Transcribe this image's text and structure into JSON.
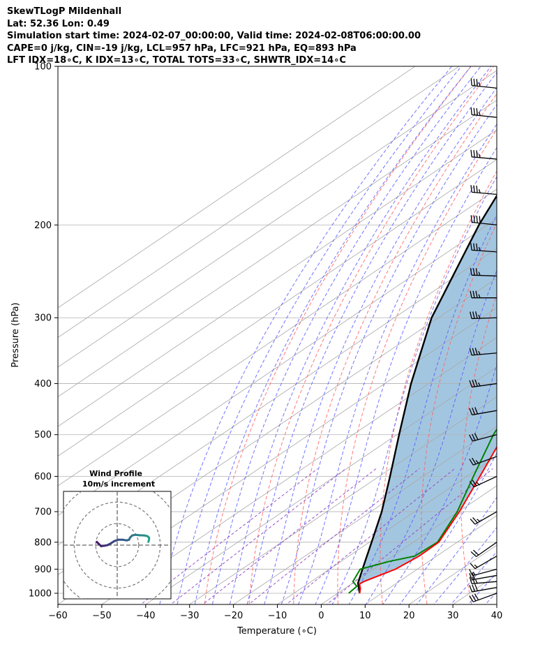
{
  "header": {
    "lines": [
      "SkewTLogP Mildenhall",
      "Lat: 52.36   Lon: 0.49",
      "Simulation start time: 2024-02-07_00:00:00, Valid time: 2024-02-08T06:00:00.00",
      "CAPE=0 j/kg, CIN=-19 j/kg, LCL=957 hPa, LFC=921 hPa, EQ=893 hPa",
      "LFT IDX=18∘C, K IDX=13∘C, TOTAL TOTS=33∘C, SHWTR_IDX=14∘C"
    ]
  },
  "chart_data": {
    "type": "skewt",
    "xlabel": "Temperature (∘C)",
    "ylabel": "Pressure (hPa)",
    "xlim": [
      -60,
      40
    ],
    "ylim": [
      1050,
      100
    ],
    "x_ticks": [
      -60,
      -50,
      -40,
      -30,
      -20,
      -10,
      0,
      10,
      20,
      30,
      40
    ],
    "x_tick_labels": [
      "−60",
      "−50",
      "−40",
      "−30",
      "−20",
      "−10",
      "0",
      "10",
      "20",
      "30",
      "40"
    ],
    "y_ticks": [
      1000,
      900,
      800,
      700,
      600,
      500,
      400,
      300,
      200,
      100
    ],
    "grid": true,
    "colors": {
      "temperature": "#ff0000",
      "dewpoint": "#008000",
      "parcel": "#000000",
      "fill": "#a3c6e0",
      "dry_adiabats": "#ff6060",
      "moist_adiabats": "#5a5aff",
      "mixing_ratio": "#9040c0",
      "isotherms": "#a8a8a8"
    },
    "temperature": [
      {
        "p": 1000,
        "t": 5.0
      },
      {
        "p": 980,
        "t": 3.6
      },
      {
        "p": 960,
        "t": 1.8
      },
      {
        "p": 950,
        "t": 2.0
      },
      {
        "p": 900,
        "t": 5.0
      },
      {
        "p": 850,
        "t": 6.0
      },
      {
        "p": 800,
        "t": 5.8
      },
      {
        "p": 700,
        "t": 0.2
      },
      {
        "p": 600,
        "t": -7.0
      },
      {
        "p": 500,
        "t": -15.6
      },
      {
        "p": 400,
        "t": -25.0
      },
      {
        "p": 300,
        "t": -38.5
      },
      {
        "p": 250,
        "t": -46.5
      },
      {
        "p": 200,
        "t": -56.5
      },
      {
        "p": 180,
        "t": -55.0
      },
      {
        "p": 150,
        "t": -48.0
      },
      {
        "p": 120,
        "t": -46.0
      },
      {
        "p": 100,
        "t": -49.0
      }
    ],
    "dewpoint": [
      {
        "p": 1000,
        "t": 2.5
      },
      {
        "p": 970,
        "t": 2.0
      },
      {
        "p": 950,
        "t": -0.5
      },
      {
        "p": 900,
        "t": -3.0
      },
      {
        "p": 870,
        "t": 1.0
      },
      {
        "p": 850,
        "t": 5.0
      },
      {
        "p": 800,
        "t": 5.5
      },
      {
        "p": 700,
        "t": -0.3
      },
      {
        "p": 600,
        "t": -8.5
      },
      {
        "p": 500,
        "t": -18.0
      },
      {
        "p": 400,
        "t": -28.0
      },
      {
        "p": 300,
        "t": -44.0
      },
      {
        "p": 250,
        "t": -53.0
      },
      {
        "p": 200,
        "t": -63.0
      },
      {
        "p": 180,
        "t": -62.5
      },
      {
        "p": 160,
        "t": -59.5
      },
      {
        "p": 150,
        "t": -62.0
      },
      {
        "p": 135,
        "t": -68.0
      },
      {
        "p": 120,
        "t": -66.0
      },
      {
        "p": 100,
        "t": -61.0
      }
    ],
    "parcel": [
      {
        "p": 1000,
        "t": 5.0
      },
      {
        "p": 957,
        "t": 1.2
      },
      {
        "p": 900,
        "t": -2.5
      },
      {
        "p": 800,
        "t": -9.5
      },
      {
        "p": 700,
        "t": -17.5
      },
      {
        "p": 600,
        "t": -27.5
      },
      {
        "p": 500,
        "t": -39.5
      },
      {
        "p": 400,
        "t": -54.0
      },
      {
        "p": 300,
        "t": -71.5
      },
      {
        "p": 200,
        "t": -92.0
      },
      {
        "p": 150,
        "t": -105.0
      },
      {
        "p": 100,
        "t": -123.0
      }
    ],
    "wind_barbs": [
      {
        "p": 1000,
        "speed_kt": 30,
        "dir_deg": 250
      },
      {
        "p": 975,
        "speed_kt": 30,
        "dir_deg": 260
      },
      {
        "p": 950,
        "speed_kt": 25,
        "dir_deg": 265
      },
      {
        "p": 925,
        "speed_kt": 20,
        "dir_deg": 260
      },
      {
        "p": 900,
        "speed_kt": 15,
        "dir_deg": 255
      },
      {
        "p": 850,
        "speed_kt": 15,
        "dir_deg": 240
      },
      {
        "p": 800,
        "speed_kt": 20,
        "dir_deg": 235
      },
      {
        "p": 700,
        "speed_kt": 25,
        "dir_deg": 240
      },
      {
        "p": 600,
        "speed_kt": 25,
        "dir_deg": 245
      },
      {
        "p": 550,
        "speed_kt": 25,
        "dir_deg": 250
      },
      {
        "p": 500,
        "speed_kt": 30,
        "dir_deg": 255
      },
      {
        "p": 450,
        "speed_kt": 30,
        "dir_deg": 260
      },
      {
        "p": 400,
        "speed_kt": 35,
        "dir_deg": 262
      },
      {
        "p": 350,
        "speed_kt": 35,
        "dir_deg": 265
      },
      {
        "p": 300,
        "speed_kt": 35,
        "dir_deg": 268
      },
      {
        "p": 275,
        "speed_kt": 35,
        "dir_deg": 270
      },
      {
        "p": 250,
        "speed_kt": 35,
        "dir_deg": 272
      },
      {
        "p": 225,
        "speed_kt": 35,
        "dir_deg": 274
      },
      {
        "p": 200,
        "speed_kt": 40,
        "dir_deg": 276
      },
      {
        "p": 175,
        "speed_kt": 35,
        "dir_deg": 275
      },
      {
        "p": 150,
        "speed_kt": 35,
        "dir_deg": 275
      },
      {
        "p": 125,
        "speed_kt": 35,
        "dir_deg": 276
      },
      {
        "p": 110,
        "speed_kt": 35,
        "dir_deg": 276
      }
    ],
    "hodograph": {
      "title": "Wind Profile",
      "subtitle": "10m/s increment",
      "ring_spacing_ms": 10,
      "range_ms": 25,
      "points": [
        {
          "u": -9.5,
          "v": 1.5
        },
        {
          "u": -8.5,
          "v": 0.5
        },
        {
          "u": -7.5,
          "v": -0.5
        },
        {
          "u": -6.0,
          "v": -0.3
        },
        {
          "u": -4.5,
          "v": 0.0
        },
        {
          "u": -3.0,
          "v": 0.8
        },
        {
          "u": -1.5,
          "v": 1.8
        },
        {
          "u": 0.5,
          "v": 2.5
        },
        {
          "u": 2.5,
          "v": 2.5
        },
        {
          "u": 4.5,
          "v": 2.2
        },
        {
          "u": 5.5,
          "v": 2.5
        },
        {
          "u": 6.0,
          "v": 3.5
        },
        {
          "u": 7.0,
          "v": 4.5
        },
        {
          "u": 8.5,
          "v": 4.8
        },
        {
          "u": 10.5,
          "v": 4.6
        },
        {
          "u": 12.5,
          "v": 4.5
        },
        {
          "u": 14.0,
          "v": 4.2
        },
        {
          "u": 14.8,
          "v": 3.5
        },
        {
          "u": 14.8,
          "v": 2.5
        },
        {
          "u": 14.5,
          "v": 1.5
        }
      ]
    }
  }
}
